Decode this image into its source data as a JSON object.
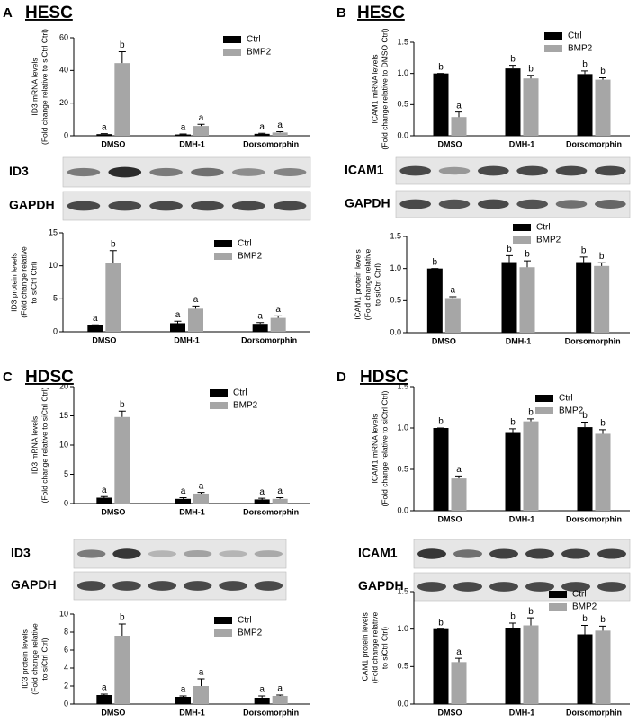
{
  "panels": [
    {
      "letter": "A",
      "title": "HESC",
      "blots": [
        "ID3",
        "GAPDH"
      ]
    },
    {
      "letter": "B",
      "title": "HESC",
      "blots": [
        "ICAM1",
        "GAPDH"
      ]
    },
    {
      "letter": "C",
      "title": "HDSC",
      "blots": [
        "ID3",
        "GAPDH"
      ]
    },
    {
      "letter": "D",
      "title": "HDSC",
      "blots": [
        "ICAM1",
        "GAPDH"
      ]
    }
  ],
  "chart_data": [
    {
      "type": "bar",
      "ylabel": [
        "ID3 mRNA levels",
        "(Fold change relative to siCtrl Ctrl)"
      ],
      "categories": [
        "DMSO",
        "DMH-1",
        "Dorsomorphin"
      ],
      "ylim": [
        0,
        60
      ],
      "yticks": [
        0,
        20,
        40,
        60
      ],
      "series": [
        {
          "name": "Ctrl",
          "color": "#000000",
          "values": [
            1,
            0.8,
            1.2
          ],
          "errors": [
            0.3,
            0.3,
            0.3
          ],
          "letters": [
            "a",
            "a",
            "a"
          ]
        },
        {
          "name": "BMP2",
          "color": "#a6a6a6",
          "values": [
            44.5,
            6,
            2
          ],
          "errors": [
            7,
            1,
            0.5
          ],
          "letters": [
            "b",
            "a",
            "a"
          ]
        }
      ]
    },
    {
      "type": "bar",
      "ylabel": [
        "ID3 protein levels",
        "(Fold change relative",
        "to siCtrl Ctrl)"
      ],
      "categories": [
        "DMSO",
        "DMH-1",
        "Dorsomorphin"
      ],
      "ylim": [
        0,
        15
      ],
      "yticks": [
        0,
        5,
        10,
        15
      ],
      "series": [
        {
          "name": "Ctrl",
          "color": "#000000",
          "values": [
            1,
            1.3,
            1.2
          ],
          "errors": [
            0.05,
            0.3,
            0.2
          ],
          "letters": [
            "a",
            "a",
            "a"
          ]
        },
        {
          "name": "BMP2",
          "color": "#a6a6a6",
          "values": [
            10.5,
            3.5,
            2.1
          ],
          "errors": [
            1.8,
            0.4,
            0.3
          ],
          "letters": [
            "b",
            "a",
            "a"
          ]
        }
      ]
    },
    {
      "type": "bar",
      "ylabel": [
        "ICAM1 mRNA levels",
        "(Fold change relative to DMSO Ctrl)"
      ],
      "categories": [
        "DMSO",
        "DMH-1",
        "Dorsomorphin"
      ],
      "ylim": [
        0,
        1.5
      ],
      "yticks": [
        {
          "value": 0,
          "label": "0.0"
        },
        0.5,
        {
          "value": 1,
          "label": "1.0"
        },
        1.5
      ],
      "series": [
        {
          "name": "Ctrl",
          "color": "#000000",
          "values": [
            1,
            1.08,
            0.99
          ],
          "errors": [
            0,
            0.05,
            0.05
          ],
          "letters": [
            "b",
            "b",
            "b"
          ]
        },
        {
          "name": "BMP2",
          "color": "#a6a6a6",
          "values": [
            0.3,
            0.92,
            0.9
          ],
          "errors": [
            0.08,
            0.05,
            0.03
          ],
          "letters": [
            "a",
            "b",
            "b"
          ]
        }
      ]
    },
    {
      "type": "bar",
      "ylabel": [
        "ICAM1 protein levels",
        "(Fold change relative",
        "to siCtrl Ctrl)"
      ],
      "categories": [
        "DMSO",
        "DMH-1",
        "Dorsomorphin"
      ],
      "ylim": [
        0,
        1.5
      ],
      "yticks": [
        {
          "value": 0,
          "label": "0.0"
        },
        0.5,
        {
          "value": 1,
          "label": "1.0"
        },
        1.5
      ],
      "series": [
        {
          "name": "Ctrl",
          "color": "#000000",
          "values": [
            1,
            1.1,
            1.1
          ],
          "errors": [
            0,
            0.1,
            0.08
          ],
          "letters": [
            "b",
            "b",
            "b"
          ]
        },
        {
          "name": "BMP2",
          "color": "#a6a6a6",
          "values": [
            0.54,
            1.02,
            1.04
          ],
          "errors": [
            0.02,
            0.1,
            0.05
          ],
          "letters": [
            "a",
            "b",
            "b"
          ]
        }
      ]
    },
    {
      "type": "bar",
      "ylabel": [
        "ID3 mRNA levels",
        "(Fold change relative to siCtrl Ctrl)"
      ],
      "categories": [
        "DMSO",
        "DMH-1",
        "Dorsomorphin"
      ],
      "ylim": [
        0,
        20
      ],
      "yticks": [
        0,
        5,
        10,
        15,
        20
      ],
      "series": [
        {
          "name": "Ctrl",
          "color": "#000000",
          "values": [
            1,
            0.8,
            0.7
          ],
          "errors": [
            0.2,
            0.2,
            0.2
          ],
          "letters": [
            "a",
            "a",
            "a"
          ]
        },
        {
          "name": "BMP2",
          "color": "#a6a6a6",
          "values": [
            14.8,
            1.7,
            0.8
          ],
          "errors": [
            1,
            0.2,
            0.2
          ],
          "letters": [
            "b",
            "a",
            "a"
          ]
        }
      ]
    },
    {
      "type": "bar",
      "ylabel": [
        "ID3 protein levels",
        "(Fold change relative",
        "to siCtrl Ctrl)"
      ],
      "categories": [
        "DMSO",
        "DMH-1",
        "Dorsomorphin"
      ],
      "ylim": [
        0,
        10
      ],
      "yticks": [
        0,
        2,
        4,
        6,
        8,
        10
      ],
      "series": [
        {
          "name": "Ctrl",
          "color": "#000000",
          "values": [
            1,
            0.8,
            0.7
          ],
          "errors": [
            0.1,
            0.1,
            0.2
          ],
          "letters": [
            "a",
            "a",
            "a"
          ]
        },
        {
          "name": "BMP2",
          "color": "#a6a6a6",
          "values": [
            7.6,
            2,
            0.9
          ],
          "errors": [
            1.3,
            0.8,
            0.1
          ],
          "letters": [
            "b",
            "a",
            "a"
          ]
        }
      ]
    },
    {
      "type": "bar",
      "ylabel": [
        "ICAM1 mRNA levels",
        "(Fold change relative to siCtrl Ctrl)"
      ],
      "categories": [
        "DMSO",
        "DMH-1",
        "Dorsomorphin"
      ],
      "ylim": [
        0,
        1.5
      ],
      "yticks": [
        {
          "value": 0,
          "label": "0.0"
        },
        0.5,
        {
          "value": 1,
          "label": "1.0"
        },
        1.5
      ],
      "series": [
        {
          "name": "Ctrl",
          "color": "#000000",
          "values": [
            1,
            0.94,
            1.01
          ],
          "errors": [
            0,
            0.05,
            0.06
          ],
          "letters": [
            "b",
            "b",
            "b"
          ]
        },
        {
          "name": "BMP2",
          "color": "#a6a6a6",
          "values": [
            0.39,
            1.08,
            0.93
          ],
          "errors": [
            0.03,
            0.03,
            0.05
          ],
          "letters": [
            "a",
            "b",
            "b"
          ]
        }
      ]
    },
    {
      "type": "bar",
      "ylabel": [
        "ICAM1 protein levels",
        "(Fold change relative",
        "to siCtrl Ctrl)"
      ],
      "categories": [
        "DMSO",
        "DMH-1",
        "Dorsomorphin"
      ],
      "ylim": [
        0,
        1.5
      ],
      "yticks": [
        {
          "value": 0,
          "label": "0.0"
        },
        0.5,
        {
          "value": 1,
          "label": "1.0"
        },
        1.5
      ],
      "series": [
        {
          "name": "Ctrl",
          "color": "#000000",
          "values": [
            1,
            1.02,
            0.93
          ],
          "errors": [
            0,
            0.06,
            0.12
          ],
          "letters": [
            "b",
            "b",
            "b"
          ]
        },
        {
          "name": "BMP2",
          "color": "#a6a6a6",
          "values": [
            0.56,
            1.05,
            0.98
          ],
          "errors": [
            0.05,
            0.1,
            0.06
          ],
          "letters": [
            "a",
            "b",
            "b"
          ]
        }
      ]
    }
  ]
}
